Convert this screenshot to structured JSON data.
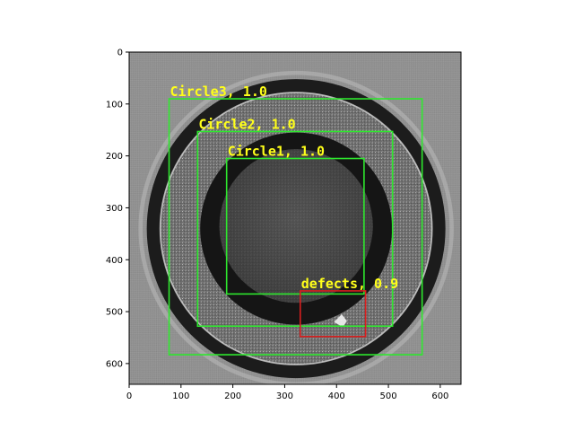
{
  "colors": {
    "box_circle": "#2ee82e",
    "box_defect": "#d81e1e",
    "label_text": "#ffff1a",
    "axis": "#000000"
  },
  "plot": {
    "type": "image-with-detections",
    "xlim": [
      0,
      640
    ],
    "ylim": [
      640,
      0
    ],
    "x_ticks": [
      "0",
      "100",
      "200",
      "300",
      "400",
      "500",
      "600"
    ],
    "y_ticks": [
      "0",
      "100",
      "200",
      "300",
      "400",
      "500",
      "600"
    ]
  },
  "detections": [
    {
      "label": "Circle3, 1.0",
      "color_key": "box_circle",
      "x1": 77,
      "y1": 90,
      "x2": 565,
      "y2": 583
    },
    {
      "label": "Circle2, 1.0",
      "color_key": "box_circle",
      "x1": 132,
      "y1": 153,
      "x2": 508,
      "y2": 528
    },
    {
      "label": "Circle1, 1.0",
      "color_key": "box_circle",
      "x1": 188,
      "y1": 205,
      "x2": 453,
      "y2": 466
    },
    {
      "label": "defects, 0.9",
      "color_key": "box_defect",
      "x1": 330,
      "y1": 460,
      "x2": 456,
      "y2": 548
    }
  ]
}
